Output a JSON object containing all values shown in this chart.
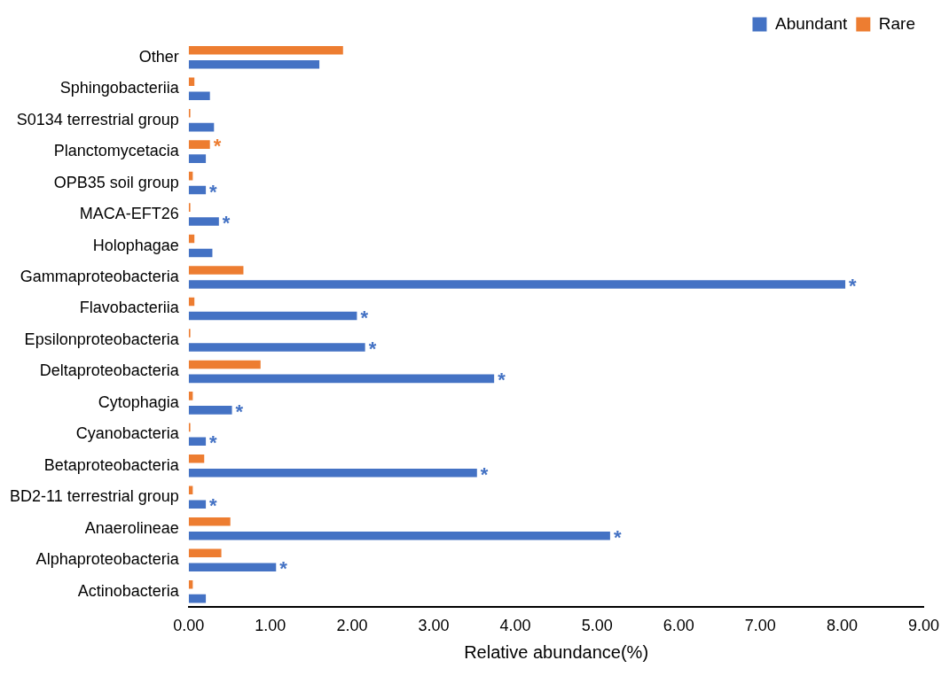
{
  "chart_data": {
    "type": "bar",
    "orientation": "horizontal",
    "xlabel": "Relative abundance(%)",
    "categories": [
      "Other",
      "Sphingobacteriia",
      "S0134 terrestrial group",
      "Planctomycetacia",
      "OPB35 soil group",
      "MACA-EFT26",
      "Holophagae",
      "Gammaproteobacteria",
      "Flavobacteriia",
      "Epsilonproteobacteria",
      "Deltaproteobacteria",
      "Cytophagia",
      "Cyanobacteria",
      "Betaproteobacteria",
      "BD2-11 terrestrial group",
      "Anaerolineae",
      "Alphaproteobacteria",
      "Actinobacteria"
    ],
    "series": [
      {
        "name": "Abundant",
        "color": "#4472c4",
        "values": [
          1.6,
          0.26,
          0.31,
          0.21,
          0.21,
          0.37,
          0.29,
          8.04,
          2.06,
          2.16,
          3.74,
          0.53,
          0.21,
          3.53,
          0.21,
          5.16,
          1.07,
          0.21
        ]
      },
      {
        "name": "Rare",
        "color": "#ed7d31",
        "values": [
          1.89,
          0.07,
          0.02,
          0.26,
          0.05,
          0.02,
          0.07,
          0.67,
          0.07,
          0.02,
          0.88,
          0.05,
          0.02,
          0.19,
          0.05,
          0.51,
          0.4,
          0.05
        ]
      }
    ],
    "xlim": [
      0,
      9
    ],
    "xticks": [
      {
        "value": 0,
        "label": "0.00"
      },
      {
        "value": 1,
        "label": "1.00"
      },
      {
        "value": 2,
        "label": "2.00"
      },
      {
        "value": 3,
        "label": "3.00"
      },
      {
        "value": 4,
        "label": "4.00"
      },
      {
        "value": 5,
        "label": "5.00"
      },
      {
        "value": 6,
        "label": "6.00"
      },
      {
        "value": 7,
        "label": "7.00"
      },
      {
        "value": 8,
        "label": "8.00"
      },
      {
        "value": 9,
        "label": "9.00"
      }
    ],
    "grid": false,
    "legend": "top right",
    "annotations": [
      {
        "text": "*",
        "x": 0.26,
        "y": "Planctomycetacia"
      },
      {
        "text": "*",
        "x": 0.21,
        "y": "OPB35 soil group"
      },
      {
        "text": "*",
        "x": 0.37,
        "y": "MACA-EFT26"
      },
      {
        "text": "*",
        "x": 8.04,
        "y": "Gammaproteobacteria"
      },
      {
        "text": "*",
        "x": 2.06,
        "y": "Flavobacteriia"
      },
      {
        "text": "*",
        "x": 2.16,
        "y": "Epsilonproteobacteria"
      },
      {
        "text": "*",
        "x": 3.74,
        "y": "Deltaproteobacteria"
      },
      {
        "text": "*",
        "x": 0.53,
        "y": "Cytophagia"
      },
      {
        "text": "*",
        "x": 0.21,
        "y": "Cyanobacteria"
      },
      {
        "text": "*",
        "x": 3.53,
        "y": "Betaproteobacteria"
      },
      {
        "text": "*",
        "x": 0.21,
        "y": "BD2-11 terrestrial group"
      },
      {
        "text": "*",
        "x": 5.16,
        "y": "Anaerolineae"
      },
      {
        "text": "*",
        "x": 1.07,
        "y": "Alphaproteobacteria"
      }
    ]
  }
}
